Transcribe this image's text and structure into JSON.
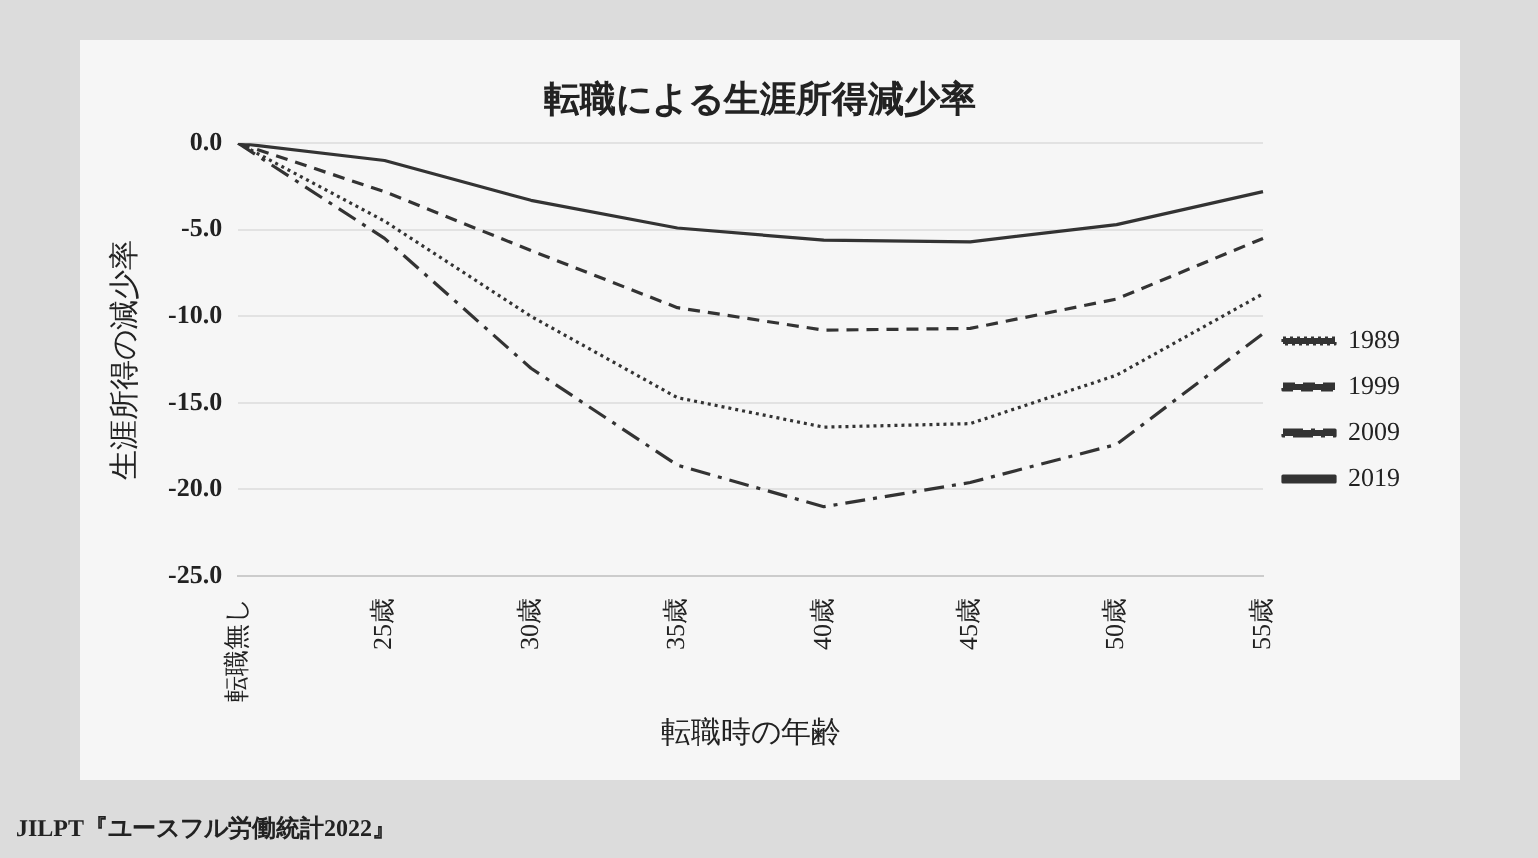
{
  "chart_data": {
    "type": "line",
    "title": "転職による生涯所得減少率",
    "xlabel": "転職時の年齢",
    "ylabel": "生涯所得の減少率",
    "categories": [
      "転職無し",
      "25歳",
      "30歳",
      "35歳",
      "40歳",
      "45歳",
      "50歳",
      "55歳"
    ],
    "series": [
      {
        "name": "1989",
        "color": "#333333",
        "line_style": "dotted",
        "values": [
          0,
          -4.5,
          -10,
          -14.7,
          -16.4,
          -16.2,
          -13.4,
          -8.7
        ]
      },
      {
        "name": "1999",
        "color": "#333333",
        "line_style": "dashed",
        "values": [
          0,
          -2.8,
          -6.2,
          -9.5,
          -10.8,
          -10.7,
          -9,
          -5.5
        ]
      },
      {
        "name": "2009",
        "color": "#333333",
        "line_style": "dashdot",
        "values": [
          0,
          -5.5,
          -13,
          -18.6,
          -21,
          -19.6,
          -17.4,
          -11
        ]
      },
      {
        "name": "2019",
        "color": "#333333",
        "line_style": "solid",
        "values": [
          0,
          -1,
          -3.3,
          -4.9,
          -5.6,
          -5.7,
          -4.7,
          -2.8
        ]
      }
    ],
    "ylim": [
      -25,
      0
    ],
    "yticks": [
      {
        "value": 0,
        "label": "0.0"
      },
      {
        "value": -5,
        "label": "-5.0"
      },
      {
        "value": -10,
        "label": "-10.0"
      },
      {
        "value": -15,
        "label": "-15.0"
      },
      {
        "value": -20,
        "label": "-20.0"
      },
      {
        "value": -25,
        "label": "-25.0"
      }
    ],
    "grid": "y",
    "legend": "right",
    "marker": "none",
    "annotations": [
      "JILPT『ユースフル労働統計2022』"
    ]
  }
}
